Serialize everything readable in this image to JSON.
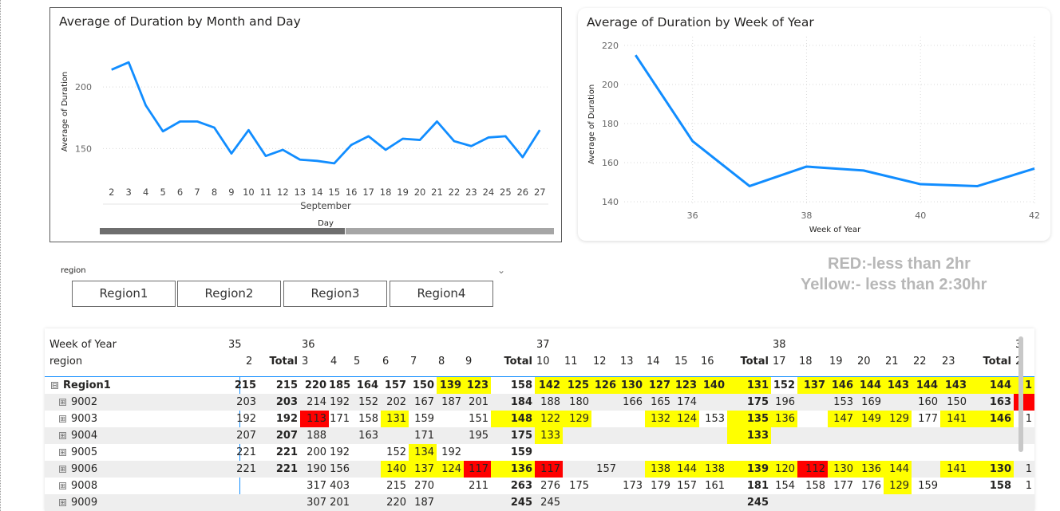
{
  "chart_data": [
    {
      "type": "line",
      "title": "Average of Duration by Month and Day",
      "xlabel": "Day",
      "x_group_label": "September",
      "ylabel": "Average of Duration",
      "x": [
        "2",
        "3",
        "4",
        "5",
        "6",
        "7",
        "8",
        "9",
        "10",
        "11",
        "12",
        "13",
        "14",
        "15",
        "16",
        "17",
        "18",
        "19",
        "20",
        "21",
        "22",
        "23",
        "24",
        "25",
        "26",
        "27"
      ],
      "values": [
        214,
        220,
        185,
        164,
        172,
        172,
        167,
        146,
        165,
        144,
        149,
        141,
        140,
        138,
        153,
        160,
        149,
        158,
        157,
        172,
        156,
        152,
        159,
        160,
        143,
        165
      ],
      "yticks": [
        150,
        200
      ],
      "ylim": [
        125,
        235
      ],
      "color": "#118dff"
    },
    {
      "type": "line",
      "title": "Average of Duration by Week of Year",
      "xlabel": "Week of Year",
      "ylabel": "Average of Duration",
      "x": [
        35,
        36,
        37,
        38,
        39,
        40,
        41,
        42
      ],
      "values": [
        215,
        171,
        148,
        158,
        156,
        149,
        148,
        157
      ],
      "xticks": [
        36,
        38,
        40,
        42
      ],
      "yticks": [
        140,
        160,
        180,
        200,
        220
      ],
      "ylim": [
        138,
        222
      ],
      "xlim": [
        34.8,
        42
      ],
      "color": "#118dff"
    }
  ],
  "slicer": {
    "title": "region",
    "chevron": "chevron-down-icon",
    "options": [
      "Region1",
      "Region2",
      "Region3",
      "Region4"
    ]
  },
  "notes": {
    "red": "RED:-less than 2hr",
    "yellow": "Yellow:- less than 2:30hr"
  },
  "matrix": {
    "header_row1_label": "Week of Year",
    "header_row2_label": "region",
    "week_headers": [
      "35",
      "36",
      "",
      "",
      "",
      "",
      "",
      "",
      "",
      "37",
      "",
      "",
      "",
      "",
      "",
      "",
      "",
      "38",
      "",
      "",
      "",
      "",
      "",
      "",
      "",
      "3"
    ],
    "day_headers": [
      "2",
      "Total",
      "3",
      "4",
      "5",
      "6",
      "7",
      "8",
      "9",
      "Total",
      "10",
      "11",
      "12",
      "13",
      "14",
      "15",
      "16",
      "Total",
      "17",
      "18",
      "19",
      "20",
      "21",
      "22",
      "23",
      "Total",
      "2"
    ],
    "rows": [
      {
        "label": "Region1",
        "expander": "⊟",
        "bold": true,
        "cells": [
          "215",
          "215",
          "220",
          "185",
          "164",
          "157",
          "150",
          "139",
          "123",
          "158",
          "142",
          "125",
          "126",
          "130",
          "127",
          "123",
          "140",
          "131",
          "152",
          "137",
          "146",
          "144",
          "143",
          "144",
          "143",
          "144",
          "1"
        ],
        "fmt": [
          "",
          "",
          "",
          "",
          "",
          "",
          "",
          "y",
          "y",
          "",
          "y",
          "y",
          "y",
          "y",
          "y",
          "y",
          "y",
          "y",
          "",
          "y",
          "y",
          "y",
          "y",
          "y",
          "y",
          "y",
          "y"
        ]
      },
      {
        "label": "9002",
        "expander": "⊞",
        "bold": false,
        "cells": [
          "203",
          "203",
          "214",
          "192",
          "152",
          "202",
          "167",
          "187",
          "201",
          "184",
          "188",
          "180",
          "",
          "166",
          "165",
          "174",
          "",
          "175",
          "196",
          "",
          "153",
          "169",
          "",
          "160",
          "150",
          "163",
          ""
        ],
        "fmt": [
          "",
          "",
          "",
          "",
          "",
          "",
          "",
          "",
          "",
          "",
          "",
          "",
          "",
          "",
          "",
          "",
          "",
          "",
          "",
          "",
          "",
          "",
          "",
          "",
          "",
          "",
          "r"
        ]
      },
      {
        "label": "9003",
        "expander": "⊞",
        "bold": false,
        "cells": [
          "192",
          "192",
          "113",
          "171",
          "158",
          "131",
          "159",
          "",
          "151",
          "148",
          "122",
          "129",
          "",
          "",
          "132",
          "124",
          "153",
          "135",
          "136",
          "",
          "147",
          "149",
          "129",
          "177",
          "141",
          "146",
          "1"
        ],
        "fmt": [
          "",
          "",
          "r",
          "",
          "",
          "y",
          "",
          "",
          "",
          "y",
          "y",
          "y",
          "",
          "",
          "y",
          "y",
          "",
          "y",
          "y",
          "",
          "y",
          "y",
          "y",
          "",
          "y",
          "y",
          ""
        ]
      },
      {
        "label": "9004",
        "expander": "⊞",
        "bold": false,
        "cells": [
          "207",
          "207",
          "188",
          "",
          "163",
          "",
          "171",
          "",
          "195",
          "175",
          "133",
          "",
          "",
          "",
          "",
          "",
          "",
          "133",
          "",
          "",
          "",
          "",
          "",
          "",
          "",
          "",
          ""
        ],
        "fmt": [
          "",
          "",
          "",
          "",
          "",
          "",
          "",
          "",
          "",
          "",
          "y",
          "",
          "",
          "",
          "",
          "",
          "",
          "y",
          "",
          "",
          "",
          "",
          "",
          "",
          "",
          "",
          ""
        ]
      },
      {
        "label": "9005",
        "expander": "⊞",
        "bold": false,
        "cells": [
          "221",
          "221",
          "200",
          "192",
          "",
          "152",
          "134",
          "192",
          "",
          "159",
          "",
          "",
          "",
          "",
          "",
          "",
          "",
          "",
          "",
          "",
          "",
          "",
          "",
          "",
          "",
          "",
          ""
        ],
        "fmt": [
          "",
          "",
          "",
          "",
          "",
          "",
          "y",
          "",
          "",
          "",
          "",
          "",
          "",
          "",
          "",
          "",
          "",
          "",
          "",
          "",
          "",
          "",
          "",
          "",
          "",
          "",
          ""
        ]
      },
      {
        "label": "9006",
        "expander": "⊞",
        "bold": false,
        "cells": [
          "221",
          "221",
          "190",
          "156",
          "",
          "140",
          "137",
          "124",
          "117",
          "136",
          "117",
          "",
          "157",
          "",
          "138",
          "144",
          "138",
          "139",
          "120",
          "112",
          "130",
          "136",
          "144",
          "",
          "141",
          "130",
          "1"
        ],
        "fmt": [
          "",
          "",
          "",
          "",
          "",
          "y",
          "y",
          "y",
          "r",
          "y",
          "r",
          "",
          "",
          "",
          "y",
          "y",
          "y",
          "y",
          "y",
          "r",
          "y",
          "y",
          "y",
          "",
          "y",
          "y",
          ""
        ]
      },
      {
        "label": "9008",
        "expander": "⊞",
        "bold": false,
        "cells": [
          "",
          "",
          "317",
          "403",
          "",
          "215",
          "270",
          "",
          "211",
          "263",
          "276",
          "175",
          "",
          "173",
          "179",
          "157",
          "161",
          "181",
          "154",
          "158",
          "177",
          "176",
          "129",
          "159",
          "",
          "158",
          "1"
        ],
        "fmt": [
          "",
          "",
          "",
          "",
          "",
          "",
          "",
          "",
          "",
          "",
          "",
          "",
          "",
          "",
          "",
          "",
          "",
          "",
          "",
          "",
          "",
          "",
          "y",
          "",
          "",
          "",
          ""
        ]
      },
      {
        "label": "9009",
        "expander": "⊞",
        "bold": false,
        "cells": [
          "",
          "",
          "307",
          "201",
          "",
          "220",
          "187",
          "",
          "",
          "245",
          "245",
          "",
          "",
          "",
          "",
          "",
          "",
          "245",
          "",
          "",
          "",
          "",
          "",
          "",
          "",
          "",
          ""
        ],
        "fmt": [
          "",
          "",
          "",
          "",
          "",
          "",
          "",
          "",
          "",
          "",
          "",
          "",
          "",
          "",
          "",
          "",
          "",
          "",
          "",
          "",
          "",
          "",
          "",
          "",
          "",
          "",
          ""
        ]
      }
    ]
  }
}
